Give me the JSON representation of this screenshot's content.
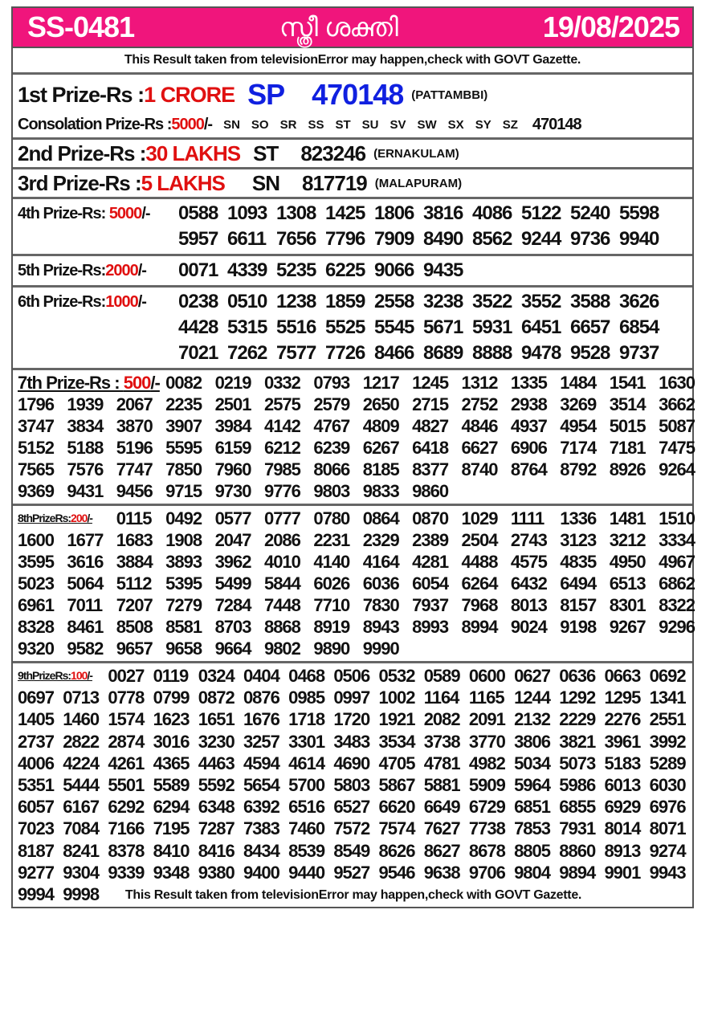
{
  "header": {
    "code": "SS-0481",
    "title": "സ്ത്രീ ശക്തി",
    "date": "19/08/2025",
    "bg_color": "#f0157c"
  },
  "disclaimer": "This Result taken from televisionError may happen,check with GOVT Gazette.",
  "first": {
    "label": "1st Prize-Rs : ",
    "amount": "1 CRORE",
    "series": "SP",
    "number": "470148",
    "location": "(PATTAMBBI)"
  },
  "consolation": {
    "label": "Consolation Prize-Rs : ",
    "amount": "5000",
    "suffix": "/-",
    "series": [
      "SN",
      "SO",
      "SR",
      "SS",
      "ST",
      "SU",
      "SV",
      "SW",
      "SX",
      "SY",
      "SZ"
    ],
    "number": "470148"
  },
  "second": {
    "label": "2nd Prize-Rs : ",
    "amount": "30 LAKHS",
    "series": "ST",
    "number": "823246",
    "location": "(ERNAKULAM)"
  },
  "third": {
    "label": "3rd Prize-Rs : ",
    "amount": "5 LAKHS",
    "series": "SN",
    "number": "817719",
    "location": "(MALAPURAM)"
  },
  "fourth": {
    "label": "4th Prize-Rs: ",
    "amount": "5000",
    "suffix": "/-",
    "numbers": [
      "0588",
      "1093",
      "1308",
      "1425",
      "1806",
      "3816",
      "4086",
      "5122",
      "5240",
      "5598",
      "5957",
      "6611",
      "7656",
      "7796",
      "7909",
      "8490",
      "8562",
      "9244",
      "9736",
      "9940"
    ]
  },
  "fifth": {
    "label": "5th Prize-Rs:",
    "amount": "2000",
    "suffix": "/-",
    "numbers": [
      "0071",
      "4339",
      "5235",
      "6225",
      "9066",
      "9435"
    ]
  },
  "sixth": {
    "label": "6th Prize-Rs:",
    "amount": "1000",
    "suffix": "/-",
    "numbers": [
      "0238",
      "0510",
      "1238",
      "1859",
      "2558",
      "3238",
      "3522",
      "3552",
      "3588",
      "3626",
      "4428",
      "5315",
      "5516",
      "5525",
      "5545",
      "5671",
      "5931",
      "6451",
      "6657",
      "6854",
      "7021",
      "7262",
      "7577",
      "7726",
      "8466",
      "8689",
      "8888",
      "9478",
      "9528",
      "9737"
    ]
  },
  "seventh": {
    "label": "7th Prize-Rs : ",
    "amount": "500",
    "suffix": "/-",
    "numbers": [
      "0082",
      "0219",
      "0332",
      "0793",
      "1217",
      "1245",
      "1312",
      "1335",
      "1484",
      "1541",
      "1630",
      "1796",
      "1939",
      "2067",
      "2235",
      "2501",
      "2575",
      "2579",
      "2650",
      "2715",
      "2752",
      "2938",
      "3269",
      "3514",
      "3662",
      "3747",
      "3834",
      "3870",
      "3907",
      "3984",
      "4142",
      "4767",
      "4809",
      "4827",
      "4846",
      "4937",
      "4954",
      "5015",
      "5087",
      "5152",
      "5188",
      "5196",
      "5595",
      "6159",
      "6212",
      "6239",
      "6267",
      "6418",
      "6627",
      "6906",
      "7174",
      "7181",
      "7475",
      "7565",
      "7576",
      "7747",
      "7850",
      "7960",
      "7985",
      "8066",
      "8185",
      "8377",
      "8740",
      "8764",
      "8792",
      "8926",
      "9264",
      "9369",
      "9431",
      "9456",
      "9715",
      "9730",
      "9776",
      "9803",
      "9833",
      "9860"
    ]
  },
  "eighth": {
    "label": "8thPrizeRs:",
    "amount": "200",
    "suffix": "/-",
    "numbers": [
      "0115",
      "0492",
      "0577",
      "0777",
      "0780",
      "0864",
      "0870",
      "1029",
      "1111",
      "1336",
      "1481",
      "1510",
      "1600",
      "1677",
      "1683",
      "1908",
      "2047",
      "2086",
      "2231",
      "2329",
      "2389",
      "2504",
      "2743",
      "3123",
      "3212",
      "3334",
      "3595",
      "3616",
      "3884",
      "3893",
      "3962",
      "4010",
      "4140",
      "4164",
      "4281",
      "4488",
      "4575",
      "4835",
      "4950",
      "4967",
      "5023",
      "5064",
      "5112",
      "5395",
      "5499",
      "5844",
      "6026",
      "6036",
      "6054",
      "6264",
      "6432",
      "6494",
      "6513",
      "6862",
      "6961",
      "7011",
      "7207",
      "7279",
      "7284",
      "7448",
      "7710",
      "7830",
      "7937",
      "7968",
      "8013",
      "8157",
      "8301",
      "8322",
      "8328",
      "8461",
      "8508",
      "8581",
      "8703",
      "8868",
      "8919",
      "8943",
      "8993",
      "8994",
      "9024",
      "9198",
      "9267",
      "9296",
      "9320",
      "9582",
      "9657",
      "9658",
      "9664",
      "9802",
      "9890",
      "9990"
    ]
  },
  "ninth": {
    "label": "9thPrizeRs:",
    "amount": "100",
    "suffix": "/-",
    "numbers": [
      "0027",
      "0119",
      "0324",
      "0404",
      "0468",
      "0506",
      "0532",
      "0589",
      "0600",
      "0627",
      "0636",
      "0663",
      "0692",
      "0697",
      "0713",
      "0778",
      "0799",
      "0872",
      "0876",
      "0985",
      "0997",
      "1002",
      "1164",
      "1165",
      "1244",
      "1292",
      "1295",
      "1341",
      "1405",
      "1460",
      "1574",
      "1623",
      "1651",
      "1676",
      "1718",
      "1720",
      "1921",
      "2082",
      "2091",
      "2132",
      "2229",
      "2276",
      "2551",
      "2737",
      "2822",
      "2874",
      "3016",
      "3230",
      "3257",
      "3301",
      "3483",
      "3534",
      "3738",
      "3770",
      "3806",
      "3821",
      "3961",
      "3992",
      "4006",
      "4224",
      "4261",
      "4365",
      "4463",
      "4594",
      "4614",
      "4690",
      "4705",
      "4781",
      "4982",
      "5034",
      "5073",
      "5183",
      "5289",
      "5351",
      "5444",
      "5501",
      "5589",
      "5592",
      "5654",
      "5700",
      "5803",
      "5867",
      "5881",
      "5909",
      "5964",
      "5986",
      "6013",
      "6030",
      "6057",
      "6167",
      "6292",
      "6294",
      "6348",
      "6392",
      "6516",
      "6527",
      "6620",
      "6649",
      "6729",
      "6851",
      "6855",
      "6929",
      "6976",
      "7023",
      "7084",
      "7166",
      "7195",
      "7287",
      "7383",
      "7460",
      "7572",
      "7574",
      "7627",
      "7738",
      "7853",
      "7931",
      "8014",
      "8071",
      "8187",
      "8241",
      "8378",
      "8410",
      "8416",
      "8434",
      "8539",
      "8549",
      "8626",
      "8627",
      "8678",
      "8805",
      "8860",
      "8913",
      "9274",
      "9277",
      "9304",
      "9339",
      "9348",
      "9380",
      "9400",
      "9440",
      "9527",
      "9546",
      "9638",
      "9706",
      "9804",
      "9894",
      "9901",
      "9943",
      "9994",
      "9998"
    ]
  },
  "footer": "This Result taken from televisionError may happen,check with GOVT Gazette."
}
